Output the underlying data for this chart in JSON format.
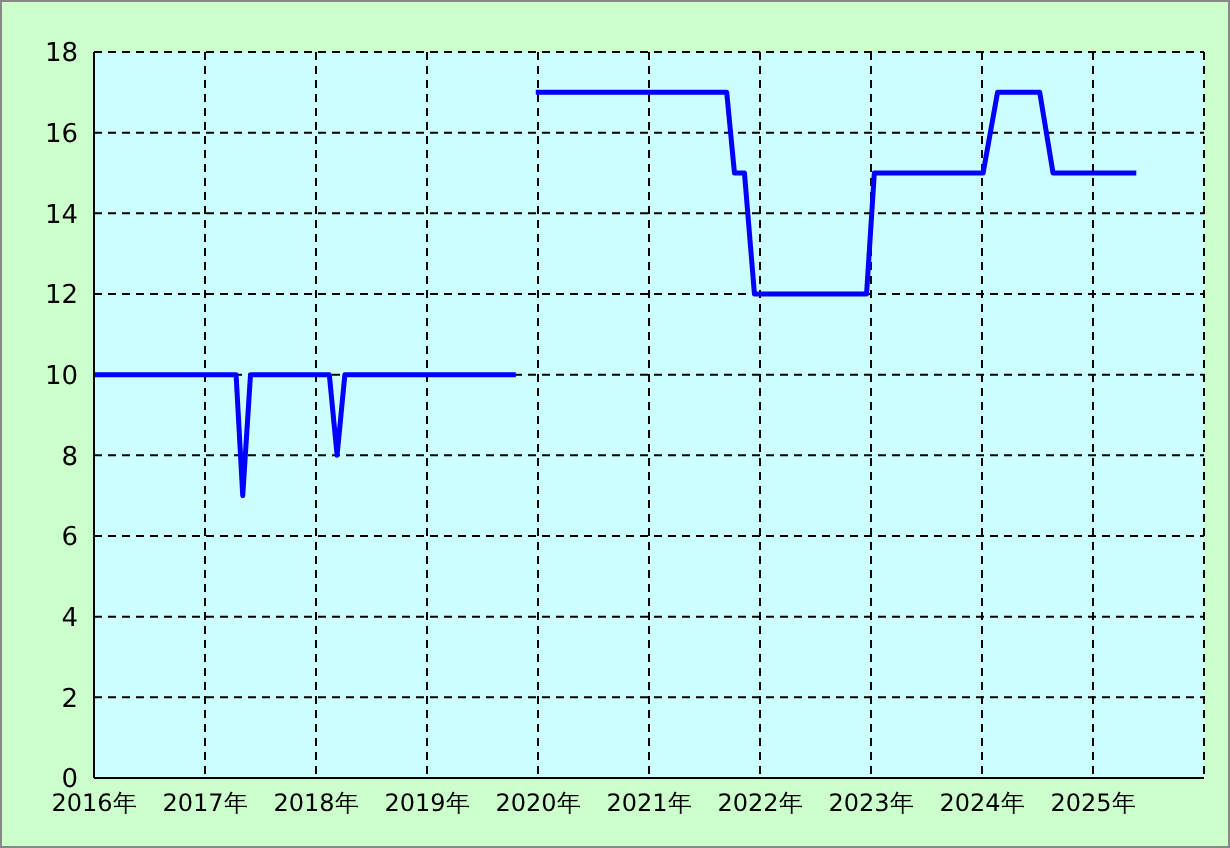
{
  "chart_data": {
    "type": "line",
    "x": [
      2016,
      2017.28,
      2017.34,
      2017.41,
      2018.12,
      2018.19,
      2018.26,
      2019.8,
      2019.9,
      2019.98,
      2021.7,
      2021.77,
      2021.86,
      2021.95,
      2022.96,
      2023.03,
      2024.01,
      2024.14,
      2024.52,
      2024.64,
      2025.39
    ],
    "series": [
      {
        "color": "#0000ff",
        "values": [
          10,
          10,
          7,
          10,
          10,
          8,
          10,
          10,
          null,
          17,
          17,
          15,
          15,
          12,
          12,
          15,
          15,
          17,
          17,
          15,
          15
        ]
      }
    ],
    "xlim": [
      2016,
      2026
    ],
    "xticks": [
      {
        "value": 2016,
        "label": "2016年"
      },
      {
        "value": 2017,
        "label": "2017年"
      },
      {
        "value": 2018,
        "label": "2018年"
      },
      {
        "value": 2019,
        "label": "2019年"
      },
      {
        "value": 2020,
        "label": "2020年"
      },
      {
        "value": 2021,
        "label": "2021年"
      },
      {
        "value": 2022,
        "label": "2022年"
      },
      {
        "value": 2023,
        "label": "2023年"
      },
      {
        "value": 2024,
        "label": "2024年"
      },
      {
        "value": 2025,
        "label": "2025年"
      }
    ],
    "ylim": [
      0,
      18
    ],
    "yticks": [
      0,
      2,
      4,
      6,
      8,
      10,
      12,
      14,
      16,
      18
    ],
    "grid": true,
    "marker": "none",
    "line_style": "solid",
    "legend": false
  }
}
